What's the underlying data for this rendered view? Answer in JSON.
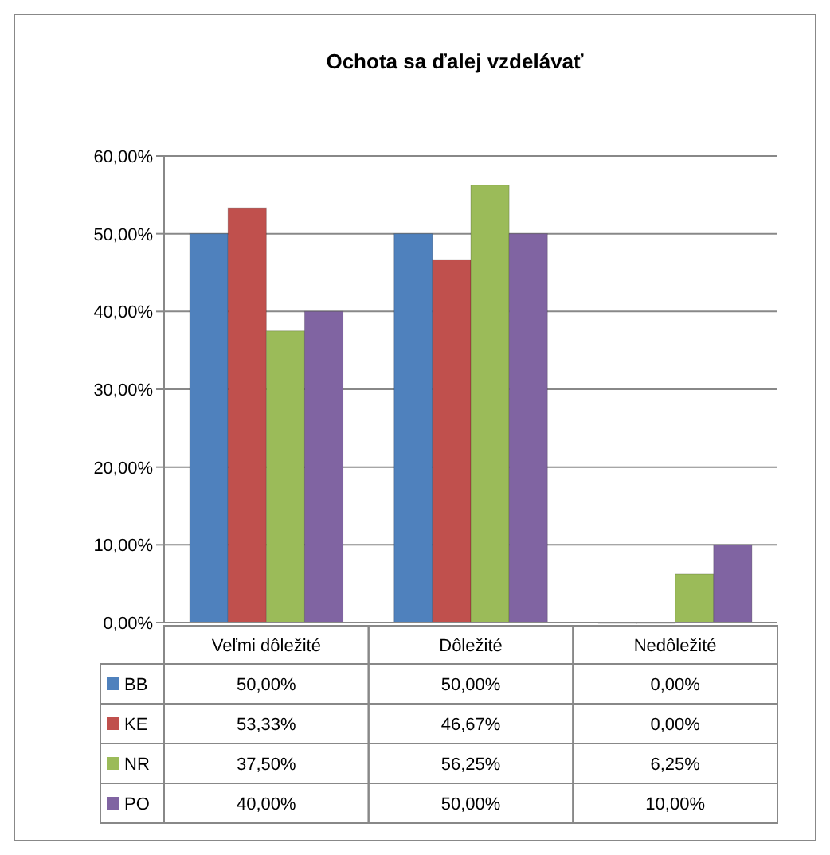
{
  "chart_data": {
    "type": "bar",
    "title": "Ochota sa ďalej vzdelávať",
    "categories": [
      "Veľmi dôležité",
      "Dôležité",
      "Nedôležité"
    ],
    "series": [
      {
        "name": "BB",
        "color": "#4f81bd",
        "values": [
          50,
          50,
          0
        ],
        "value_labels": [
          "50,00%",
          "50,00%",
          "0,00%"
        ]
      },
      {
        "name": "KE",
        "color": "#c0504d",
        "values": [
          53.33,
          46.67,
          0
        ],
        "value_labels": [
          "53,33%",
          "46,67%",
          "0,00%"
        ]
      },
      {
        "name": "NR",
        "color": "#9bbb59",
        "values": [
          37.5,
          56.25,
          6.25
        ],
        "value_labels": [
          "37,50%",
          "56,25%",
          "6,25%"
        ]
      },
      {
        "name": "PO",
        "color": "#8064a2",
        "values": [
          40,
          50,
          10
        ],
        "value_labels": [
          "40,00%",
          "50,00%",
          "10,00%"
        ]
      }
    ],
    "ylim": [
      0,
      60
    ],
    "yticks": [
      {
        "value": 0,
        "label": "0,00%"
      },
      {
        "value": 10,
        "label": "10,00%"
      },
      {
        "value": 20,
        "label": "20,00%"
      },
      {
        "value": 30,
        "label": "30,00%"
      },
      {
        "value": 40,
        "label": "40,00%"
      },
      {
        "value": 50,
        "label": "50,00%"
      },
      {
        "value": 60,
        "label": "60,00%"
      }
    ],
    "grid": "y",
    "legend": "bottom"
  }
}
